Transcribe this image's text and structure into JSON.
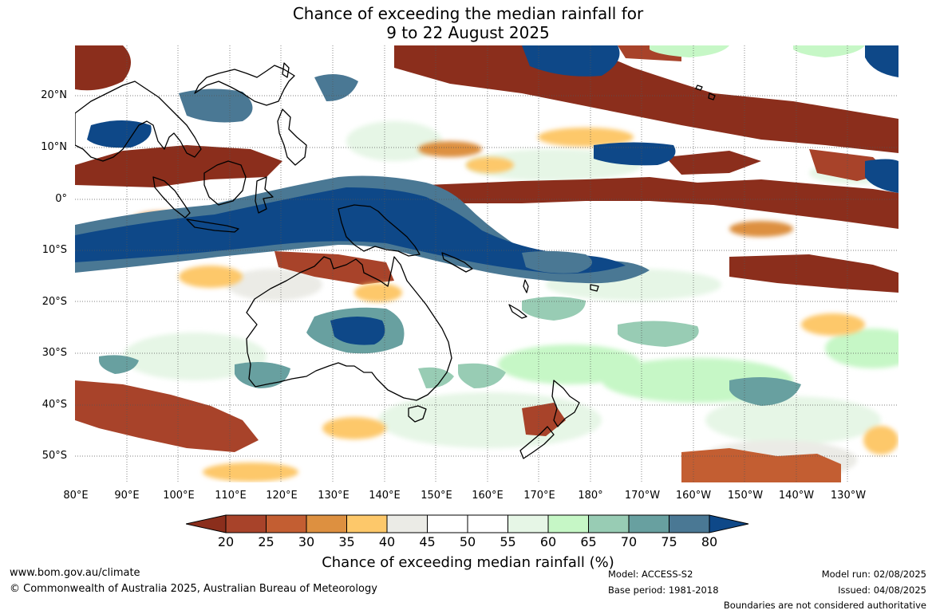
{
  "title": {
    "line1": "Chance of exceeding the median rainfall for",
    "line2": "9 to 22 August 2025"
  },
  "map": {
    "lon_labels": [
      "80°E",
      "90°E",
      "100°E",
      "110°E",
      "120°E",
      "130°E",
      "140°E",
      "150°E",
      "160°E",
      "170°E",
      "180°",
      "170°W",
      "160°W",
      "150°W",
      "140°W",
      "130°W"
    ],
    "lat_labels": [
      "20°N",
      "10°N",
      "0°",
      "10°S",
      "20°S",
      "30°S",
      "40°S",
      "50°S"
    ],
    "ocean_color": "#ffffff",
    "coast_color": "#000000",
    "grid_style": "dotted"
  },
  "colorbar": {
    "ticks": [
      "20",
      "25",
      "30",
      "35",
      "40",
      "45",
      "50",
      "55",
      "60",
      "65",
      "70",
      "75",
      "80"
    ],
    "colors": [
      "#8b2e1c",
      "#a8432a",
      "#c35e32",
      "#dd9040",
      "#fdc86a",
      "#ebebe6",
      "#ffffff",
      "#ffffff",
      "#e6f6e6",
      "#c6f7c6",
      "#98ccb4",
      "#68a0a0",
      "#4a7894",
      "#0e4888"
    ],
    "label": "Chance of exceeding median rainfall (%)"
  },
  "footer": {
    "website": "www.bom.gov.au/climate",
    "copyright": "© Commonwealth of Australia 2025, Australian Bureau of Meteorology",
    "model": "Model: ACCESS-S2",
    "base_period": "Base period: 1981-2018",
    "model_run": "Model run: 02/08/2025",
    "issued": "Issued: 04/08/2025",
    "boundaries_note": "Boundaries are not considered authoritative"
  }
}
